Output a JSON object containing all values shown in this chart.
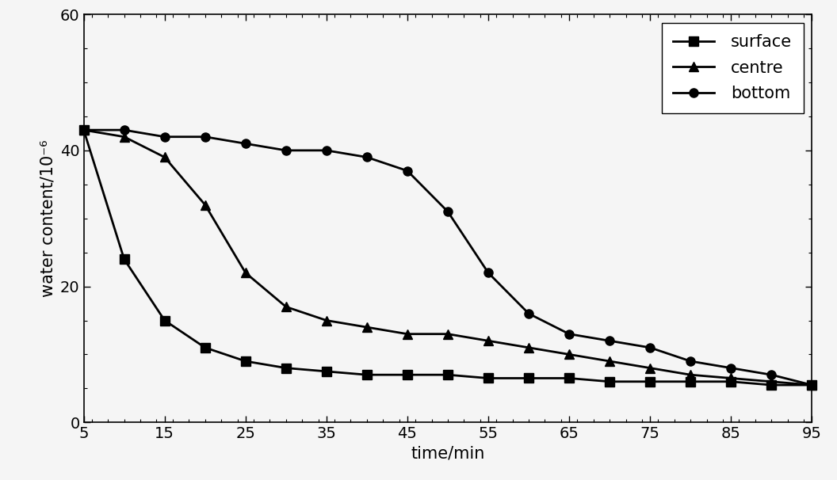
{
  "title": "",
  "xlabel": "time/min",
  "ylabel": "water content/10⁻⁶",
  "xlim": [
    5,
    95
  ],
  "ylim": [
    0,
    60
  ],
  "xticks": [
    5,
    15,
    25,
    35,
    45,
    55,
    65,
    75,
    85,
    95
  ],
  "yticks": [
    0,
    20,
    40,
    60
  ],
  "background_color": "#f5f5f5",
  "series": [
    {
      "label": "surface",
      "marker": "s",
      "x": [
        5,
        10,
        15,
        20,
        25,
        30,
        35,
        40,
        45,
        50,
        55,
        60,
        65,
        70,
        75,
        80,
        85,
        90,
        95
      ],
      "y": [
        43,
        24,
        15,
        11,
        9,
        8,
        7.5,
        7,
        7,
        7,
        6.5,
        6.5,
        6.5,
        6,
        6,
        6,
        6,
        5.5,
        5.5
      ]
    },
    {
      "label": "centre",
      "marker": "^",
      "x": [
        5,
        10,
        15,
        20,
        25,
        30,
        35,
        40,
        45,
        50,
        55,
        60,
        65,
        70,
        75,
        80,
        85,
        90,
        95
      ],
      "y": [
        43,
        42,
        39,
        32,
        22,
        17,
        15,
        14,
        13,
        13,
        12,
        11,
        10,
        9,
        8,
        7,
        6.5,
        6,
        5.5
      ]
    },
    {
      "label": "bottom",
      "marker": "o",
      "x": [
        5,
        10,
        15,
        20,
        25,
        30,
        35,
        40,
        45,
        50,
        55,
        60,
        65,
        70,
        75,
        80,
        85,
        90,
        95
      ],
      "y": [
        43,
        43,
        42,
        42,
        41,
        40,
        40,
        39,
        37,
        31,
        22,
        16,
        13,
        12,
        11,
        9,
        8,
        7,
        5.5
      ]
    }
  ],
  "line_color": "#000000",
  "linewidth": 2.0,
  "markersize": 8,
  "legend_fontsize": 15,
  "axis_fontsize": 15,
  "tick_fontsize": 14
}
